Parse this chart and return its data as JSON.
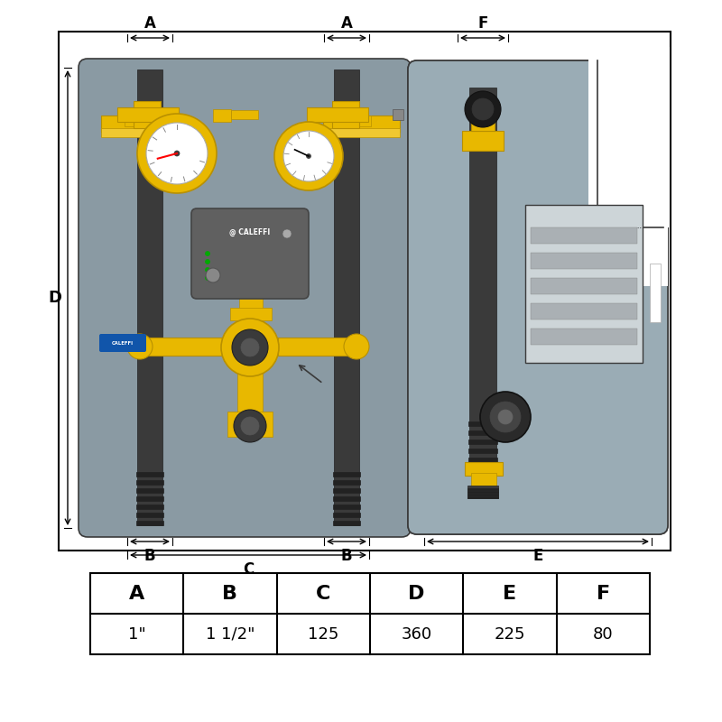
{
  "bg_color": "#ffffff",
  "panel_gray": "#8a9aa3",
  "panel_gray2": "#9aacb5",
  "yellow": "#e8b800",
  "yellow2": "#f0c830",
  "dark_gray": "#3a3a3a",
  "mid_gray": "#666666",
  "light_gray": "#b8c0c4",
  "lighter_gray": "#cdd5d8",
  "white": "#ffffff",
  "black": "#000000",
  "pump_dark": "#5a5a5a",
  "pipe_dark": "#2a2a2a",
  "blue_label": "#1155aa",
  "table_headers": [
    "A",
    "B",
    "C",
    "D",
    "E",
    "F"
  ],
  "table_values": [
    "1\"",
    "1 1/2\"",
    "125",
    "360",
    "225",
    "80"
  ]
}
